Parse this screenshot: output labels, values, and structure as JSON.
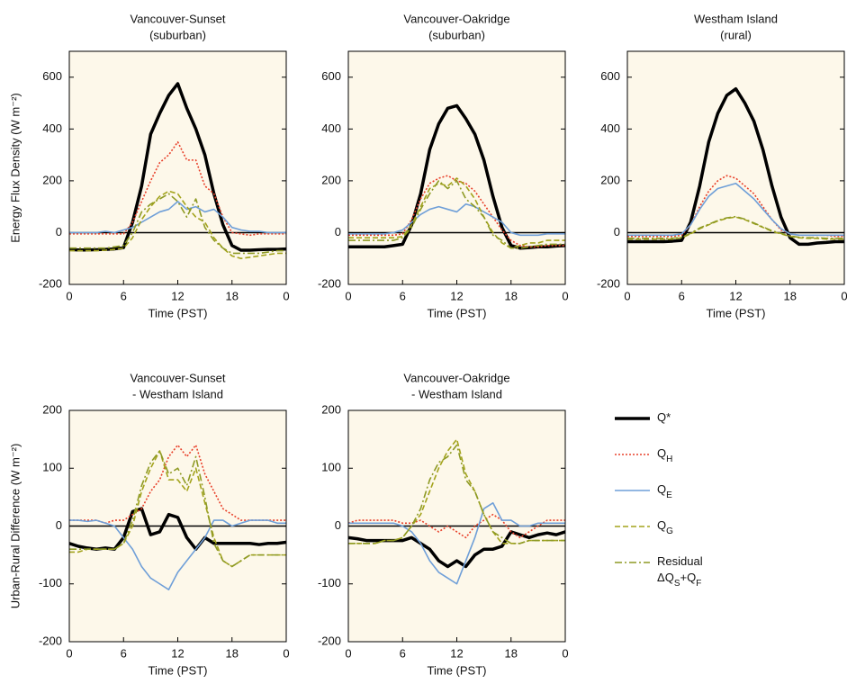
{
  "chart_data": [
    {
      "type": "line",
      "title": "Vancouver-Sunset",
      "subtitle": "(suburban)",
      "ylabel": "Energy Flux Density (W m⁻²)",
      "xlabel": "Time (PST)",
      "x": [
        0,
        1,
        2,
        3,
        4,
        5,
        6,
        7,
        8,
        9,
        10,
        11,
        12,
        13,
        14,
        15,
        16,
        17,
        18,
        19,
        20,
        21,
        22,
        23,
        24
      ],
      "xlim": [
        0,
        24
      ],
      "xticks": [
        0,
        6,
        12,
        18,
        {
          "value": 24,
          "label": "0"
        }
      ],
      "ylim": [
        -200,
        700
      ],
      "yticks": [
        -200,
        0,
        200,
        400,
        600
      ],
      "zero_line": true,
      "series": [
        {
          "color": "#000000",
          "width": 3.5,
          "dash": "solid",
          "values": [
            -65,
            -67,
            -67,
            -66,
            -65,
            -63,
            -58,
            40,
            180,
            380,
            460,
            530,
            575,
            480,
            400,
            300,
            150,
            30,
            -50,
            -68,
            -68,
            -66,
            -65,
            -65,
            -63
          ]
        },
        {
          "color": "#e8402a",
          "width": 1.6,
          "dash": "dotted",
          "values": [
            -5,
            -5,
            -5,
            -5,
            -5,
            -5,
            -5,
            40,
            120,
            200,
            270,
            300,
            350,
            280,
            280,
            180,
            150,
            60,
            0,
            -5,
            -10,
            -5,
            -5,
            -5,
            -5
          ]
        },
        {
          "color": "#6f9fd8",
          "width": 1.6,
          "dash": "solid",
          "values": [
            0,
            0,
            0,
            0,
            5,
            0,
            10,
            20,
            40,
            60,
            80,
            90,
            120,
            90,
            100,
            80,
            90,
            60,
            20,
            10,
            5,
            5,
            0,
            0,
            0
          ]
        },
        {
          "color": "#a3a31c",
          "width": 1.6,
          "dash": "dashed",
          "values": [
            -70,
            -70,
            -70,
            -70,
            -68,
            -65,
            -60,
            -20,
            50,
            100,
            140,
            160,
            150,
            100,
            60,
            40,
            -20,
            -60,
            -90,
            -100,
            -95,
            -90,
            -85,
            -80,
            -80
          ]
        },
        {
          "color": "#8e9a24",
          "width": 1.6,
          "dash": "dashdot",
          "values": [
            -60,
            -60,
            -60,
            -60,
            -60,
            -55,
            -50,
            0,
            80,
            110,
            130,
            150,
            120,
            60,
            130,
            20,
            -30,
            -60,
            -80,
            -80,
            -80,
            -80,
            -75,
            -70,
            -70
          ]
        }
      ]
    },
    {
      "type": "line",
      "title": "Vancouver-Oakridge",
      "subtitle": "(suburban)",
      "xlabel": "Time (PST)",
      "x": [
        0,
        1,
        2,
        3,
        4,
        5,
        6,
        7,
        8,
        9,
        10,
        11,
        12,
        13,
        14,
        15,
        16,
        17,
        18,
        19,
        20,
        21,
        22,
        23,
        24
      ],
      "xlim": [
        0,
        24
      ],
      "xticks": [
        0,
        6,
        12,
        18,
        {
          "value": 24,
          "label": "0"
        }
      ],
      "ylim": [
        -200,
        700
      ],
      "yticks": [
        -200,
        0,
        200,
        400,
        600
      ],
      "zero_line": true,
      "series": [
        {
          "color": "#000000",
          "width": 3.5,
          "dash": "solid",
          "values": [
            -55,
            -55,
            -55,
            -55,
            -55,
            -50,
            -45,
            30,
            150,
            320,
            420,
            480,
            490,
            440,
            380,
            280,
            140,
            20,
            -50,
            -60,
            -58,
            -55,
            -55,
            -52,
            -50
          ]
        },
        {
          "color": "#e8402a",
          "width": 1.6,
          "dash": "dotted",
          "values": [
            -10,
            -10,
            -10,
            -10,
            -10,
            -10,
            -5,
            50,
            130,
            190,
            210,
            220,
            200,
            190,
            160,
            110,
            60,
            10,
            -30,
            -50,
            -55,
            -55,
            -50,
            -50,
            -50
          ]
        },
        {
          "color": "#6f9fd8",
          "width": 1.6,
          "dash": "solid",
          "values": [
            -5,
            -5,
            -5,
            -5,
            -5,
            0,
            10,
            40,
            70,
            90,
            100,
            90,
            80,
            110,
            100,
            80,
            60,
            40,
            0,
            -10,
            -10,
            -10,
            -5,
            -5,
            -5
          ]
        },
        {
          "color": "#a3a31c",
          "width": 1.6,
          "dash": "dashed",
          "values": [
            -20,
            -20,
            -20,
            -20,
            -20,
            -20,
            -15,
            30,
            100,
            170,
            190,
            180,
            210,
            180,
            130,
            60,
            0,
            -40,
            -60,
            -50,
            -40,
            -40,
            -30,
            -30,
            -30
          ]
        },
        {
          "color": "#8e9a24",
          "width": 1.6,
          "dash": "dashdot",
          "values": [
            -30,
            -30,
            -30,
            -30,
            -30,
            -30,
            -20,
            20,
            90,
            150,
            200,
            170,
            200,
            130,
            100,
            60,
            -10,
            -30,
            -60,
            -60,
            -55,
            -50,
            -45,
            -45,
            -45
          ]
        }
      ]
    },
    {
      "type": "line",
      "title": "Westham Island",
      "subtitle": "(rural)",
      "xlabel": "Time (PST)",
      "x": [
        0,
        1,
        2,
        3,
        4,
        5,
        6,
        7,
        8,
        9,
        10,
        11,
        12,
        13,
        14,
        15,
        16,
        17,
        18,
        19,
        20,
        21,
        22,
        23,
        24
      ],
      "xlim": [
        0,
        24
      ],
      "xticks": [
        0,
        6,
        12,
        18,
        {
          "value": 24,
          "label": "0"
        }
      ],
      "ylim": [
        -200,
        700
      ],
      "yticks": [
        -200,
        0,
        200,
        400,
        600
      ],
      "zero_line": true,
      "series": [
        {
          "color": "#000000",
          "width": 3.5,
          "dash": "solid",
          "values": [
            -35,
            -35,
            -35,
            -35,
            -35,
            -33,
            -30,
            40,
            180,
            350,
            460,
            530,
            555,
            500,
            430,
            320,
            180,
            60,
            -20,
            -45,
            -45,
            -40,
            -38,
            -35,
            -35
          ]
        },
        {
          "color": "#e8402a",
          "width": 1.6,
          "dash": "dotted",
          "values": [
            -15,
            -15,
            -15,
            -15,
            -15,
            -15,
            -10,
            30,
            100,
            160,
            200,
            220,
            210,
            180,
            150,
            100,
            50,
            10,
            -5,
            -10,
            -10,
            -10,
            -10,
            -15,
            -15
          ]
        },
        {
          "color": "#6f9fd8",
          "width": 1.6,
          "dash": "solid",
          "values": [
            -10,
            -10,
            -10,
            -10,
            -10,
            -10,
            -5,
            30,
            90,
            140,
            170,
            180,
            190,
            160,
            130,
            90,
            50,
            15,
            -5,
            -10,
            -10,
            -10,
            -10,
            -10,
            -10
          ]
        },
        {
          "color": "#a3a31c",
          "width": 1.6,
          "dash": "dashed",
          "values": [
            -25,
            -25,
            -25,
            -25,
            -25,
            -25,
            -20,
            -5,
            15,
            30,
            45,
            55,
            60,
            50,
            35,
            20,
            5,
            -5,
            -15,
            -20,
            -22,
            -22,
            -25,
            -25,
            -25
          ]
        },
        {
          "color": "#8e9a24",
          "width": 1.6,
          "dash": "dashdot",
          "values": [
            -22,
            -22,
            -22,
            -22,
            -22,
            -22,
            -18,
            -3,
            18,
            32,
            47,
            57,
            62,
            52,
            37,
            22,
            7,
            -3,
            -13,
            -18,
            -20,
            -20,
            -22,
            -22,
            -22
          ]
        }
      ]
    },
    {
      "type": "line",
      "title": "Vancouver-Sunset",
      "subtitle": "- Westham Island",
      "ylabel": "Urban-Rural Difference (W m⁻²)",
      "xlabel": "Time (PST)",
      "x": [
        0,
        1,
        2,
        3,
        4,
        5,
        6,
        7,
        8,
        9,
        10,
        11,
        12,
        13,
        14,
        15,
        16,
        17,
        18,
        19,
        20,
        21,
        22,
        23,
        24
      ],
      "xlim": [
        0,
        24
      ],
      "xticks": [
        0,
        6,
        12,
        18,
        {
          "value": 24,
          "label": "0"
        }
      ],
      "ylim": [
        -200,
        200
      ],
      "yticks": [
        -200,
        -100,
        0,
        100,
        200
      ],
      "zero_line": true,
      "series": [
        {
          "color": "#000000",
          "width": 3.5,
          "dash": "solid",
          "values": [
            -30,
            -35,
            -38,
            -40,
            -38,
            -40,
            -20,
            25,
            30,
            -15,
            -10,
            20,
            15,
            -20,
            -40,
            -20,
            -30,
            -30,
            -30,
            -30,
            -30,
            -32,
            -30,
            -30,
            -28
          ]
        },
        {
          "color": "#e8402a",
          "width": 1.6,
          "dash": "dotted",
          "values": [
            10,
            10,
            10,
            10,
            5,
            10,
            10,
            20,
            30,
            60,
            80,
            120,
            140,
            120,
            140,
            90,
            60,
            30,
            20,
            10,
            10,
            10,
            10,
            10,
            10
          ]
        },
        {
          "color": "#6f9fd8",
          "width": 1.6,
          "dash": "solid",
          "values": [
            10,
            10,
            8,
            10,
            5,
            0,
            -20,
            -40,
            -70,
            -90,
            -100,
            -110,
            -80,
            -60,
            -40,
            -20,
            10,
            10,
            0,
            5,
            10,
            10,
            10,
            5,
            5
          ]
        },
        {
          "color": "#a3a31c",
          "width": 1.6,
          "dash": "dashed",
          "values": [
            -45,
            -45,
            -40,
            -40,
            -40,
            -40,
            -30,
            0,
            60,
            100,
            130,
            80,
            80,
            60,
            100,
            40,
            -20,
            -60,
            -70,
            -60,
            -50,
            -50,
            -50,
            -50,
            -50
          ]
        },
        {
          "color": "#8e9a24",
          "width": 1.6,
          "dash": "dashdot",
          "values": [
            -40,
            -40,
            -40,
            -40,
            -40,
            -40,
            -30,
            10,
            70,
            110,
            130,
            90,
            100,
            70,
            120,
            50,
            -30,
            -60,
            -70,
            -60,
            -50,
            -50,
            -50,
            -50,
            -50
          ]
        }
      ]
    },
    {
      "type": "line",
      "title": "Vancouver-Oakridge",
      "subtitle": "- Westham Island",
      "xlabel": "Time (PST)",
      "x": [
        0,
        1,
        2,
        3,
        4,
        5,
        6,
        7,
        8,
        9,
        10,
        11,
        12,
        13,
        14,
        15,
        16,
        17,
        18,
        19,
        20,
        21,
        22,
        23,
        24
      ],
      "xlim": [
        0,
        24
      ],
      "xticks": [
        0,
        6,
        12,
        18,
        {
          "value": 24,
          "label": "0"
        }
      ],
      "ylim": [
        -200,
        200
      ],
      "yticks": [
        -200,
        -100,
        0,
        100,
        200
      ],
      "zero_line": true,
      "legend": true,
      "series": [
        {
          "name": "Q*",
          "color": "#000000",
          "width": 3.5,
          "dash": "solid",
          "values": [
            -20,
            -22,
            -25,
            -25,
            -25,
            -25,
            -25,
            -20,
            -30,
            -40,
            -60,
            -70,
            -60,
            -70,
            -50,
            -40,
            -40,
            -35,
            -10,
            -15,
            -20,
            -15,
            -12,
            -15,
            -10
          ]
        },
        {
          "name": "QH",
          "color": "#e8402a",
          "width": 1.6,
          "dash": "dotted",
          "values": [
            5,
            10,
            10,
            10,
            10,
            10,
            5,
            5,
            10,
            0,
            -10,
            0,
            -10,
            -20,
            0,
            10,
            20,
            10,
            -10,
            -20,
            -10,
            0,
            10,
            10,
            10
          ]
        },
        {
          "name": "QE",
          "color": "#6f9fd8",
          "width": 1.6,
          "dash": "solid",
          "values": [
            5,
            5,
            5,
            5,
            5,
            5,
            0,
            -10,
            -30,
            -60,
            -80,
            -90,
            -100,
            -60,
            -20,
            30,
            40,
            10,
            10,
            0,
            0,
            5,
            5,
            5,
            5
          ]
        },
        {
          "name": "QG",
          "color": "#a3a31c",
          "width": 1.6,
          "dash": "dashed",
          "values": [
            -30,
            -30,
            -30,
            -30,
            -25,
            -25,
            -20,
            0,
            20,
            60,
            100,
            130,
            150,
            90,
            60,
            20,
            -10,
            -30,
            -30,
            -30,
            -25,
            -25,
            -25,
            -25,
            -25
          ]
        },
        {
          "name": "Residual ΔQS+QF",
          "color": "#8e9a24",
          "width": 1.6,
          "dash": "dashdot",
          "values": [
            -30,
            -30,
            -30,
            -30,
            -25,
            -25,
            -20,
            0,
            30,
            80,
            110,
            120,
            140,
            80,
            60,
            20,
            -10,
            -20,
            -30,
            -30,
            -25,
            -25,
            -25,
            -25,
            -25
          ]
        }
      ]
    }
  ]
}
